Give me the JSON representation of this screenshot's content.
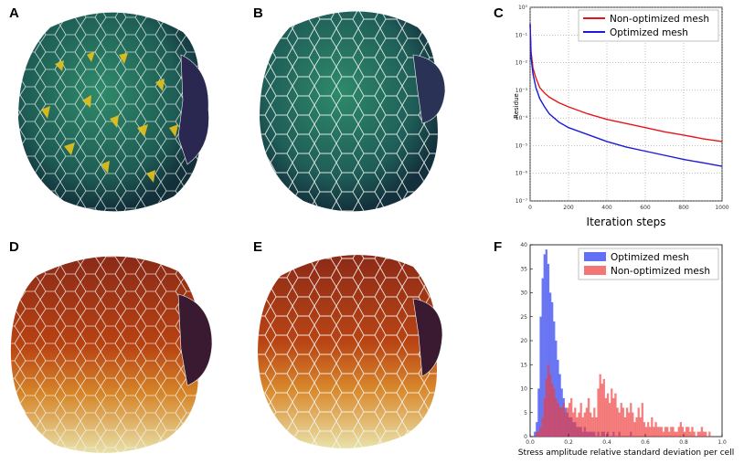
{
  "panels": {
    "a": {
      "letter": "A"
    },
    "b": {
      "letter": "B"
    },
    "c": {
      "letter": "C"
    },
    "d": {
      "letter": "D"
    },
    "e": {
      "letter": "E"
    },
    "f": {
      "letter": "F"
    }
  },
  "colors": {
    "red_series": "#e8141a",
    "blue_series": "#1a1ad8",
    "hist_blue": "#3b4cf0",
    "hist_red": "#ef3b3b"
  },
  "chart_data": [
    {
      "panel": "C",
      "type": "line",
      "xlabel": "Iteration steps",
      "ylabel": "Residue",
      "yscale": "log",
      "xlim": [
        0,
        1000
      ],
      "ylim_exp": [
        -7,
        0
      ],
      "xticks": [
        0,
        200,
        400,
        600,
        800,
        1000
      ],
      "yticks": [
        "10⁰",
        "10⁻¹",
        "10⁻²",
        "10⁻³",
        "10⁻⁴",
        "10⁻⁵",
        "10⁻⁶",
        "10⁻⁷"
      ],
      "grid": true,
      "legend": "top-right",
      "series": [
        {
          "name": "Non-optimized mesh",
          "color": "#e8141a",
          "x": [
            0,
            5,
            15,
            30,
            50,
            75,
            100,
            150,
            200,
            300,
            400,
            500,
            600,
            700,
            800,
            900,
            1000
          ],
          "log_residue": [
            -0.6,
            -1.6,
            -2.2,
            -2.55,
            -2.9,
            -3.1,
            -3.25,
            -3.45,
            -3.6,
            -3.85,
            -4.05,
            -4.2,
            -4.35,
            -4.5,
            -4.62,
            -4.75,
            -4.85
          ]
        },
        {
          "name": "Optimized mesh",
          "color": "#1a1ad8",
          "x": [
            0,
            5,
            15,
            30,
            50,
            75,
            100,
            150,
            200,
            300,
            400,
            500,
            600,
            700,
            800,
            900,
            1000
          ],
          "log_residue": [
            -0.6,
            -1.8,
            -2.4,
            -2.9,
            -3.3,
            -3.6,
            -3.85,
            -4.15,
            -4.35,
            -4.6,
            -4.85,
            -5.05,
            -5.2,
            -5.35,
            -5.5,
            -5.62,
            -5.75
          ]
        }
      ]
    },
    {
      "panel": "F",
      "type": "histogram",
      "xlabel": "Stress amplitude relative standard deviation per cell",
      "xlim": [
        0,
        1
      ],
      "ylim": [
        0,
        40
      ],
      "xticks": [
        "0.0",
        "0.2",
        "0.4",
        "0.6",
        "0.8",
        "1.0"
      ],
      "yticks": [
        0,
        5,
        10,
        15,
        20,
        25,
        30,
        35,
        40
      ],
      "legend": "top-right",
      "bin_width": 0.01,
      "bin_start": 0,
      "series": [
        {
          "name": "Optimized mesh",
          "color": "#3b4cf0",
          "counts": [
            0,
            0,
            1,
            3,
            10,
            25,
            33,
            38,
            39,
            36,
            30,
            28,
            24,
            20,
            16,
            13,
            10,
            8,
            6,
            5,
            4,
            4,
            3,
            3,
            2,
            2,
            2,
            1,
            2,
            1,
            1,
            1,
            1,
            1,
            0,
            1,
            0,
            1,
            1,
            0,
            1,
            0,
            0,
            1,
            0,
            0,
            1,
            0,
            0,
            0,
            0,
            0,
            1,
            0,
            0,
            0,
            0,
            0,
            0,
            0,
            0,
            0,
            0,
            0,
            0,
            0,
            0,
            0,
            0,
            0,
            0,
            0,
            0,
            0,
            0,
            0,
            0,
            0,
            0,
            0,
            0,
            0,
            0,
            0,
            0,
            0,
            0,
            0,
            0,
            0,
            0,
            0,
            0,
            0,
            0,
            0,
            0,
            0,
            0,
            0
          ]
        },
        {
          "name": "Non-optimized mesh",
          "color": "#ef3b3b",
          "counts": [
            0,
            0,
            0,
            1,
            1,
            2,
            4,
            8,
            12,
            15,
            13,
            11,
            10,
            8,
            7,
            6,
            6,
            7,
            5,
            6,
            7,
            8,
            5,
            6,
            4,
            5,
            7,
            4,
            5,
            6,
            8,
            5,
            4,
            6,
            4,
            10,
            13,
            11,
            12,
            8,
            9,
            7,
            10,
            8,
            9,
            6,
            5,
            7,
            6,
            4,
            6,
            5,
            7,
            5,
            3,
            4,
            6,
            4,
            7,
            3,
            2,
            3,
            2,
            4,
            2,
            3,
            2,
            2,
            2,
            1,
            2,
            2,
            1,
            2,
            2,
            1,
            1,
            2,
            3,
            2,
            1,
            2,
            2,
            1,
            2,
            1,
            0,
            1,
            1,
            2,
            1,
            1,
            0,
            1,
            0,
            0,
            0,
            0,
            0,
            0
          ]
        }
      ]
    }
  ]
}
